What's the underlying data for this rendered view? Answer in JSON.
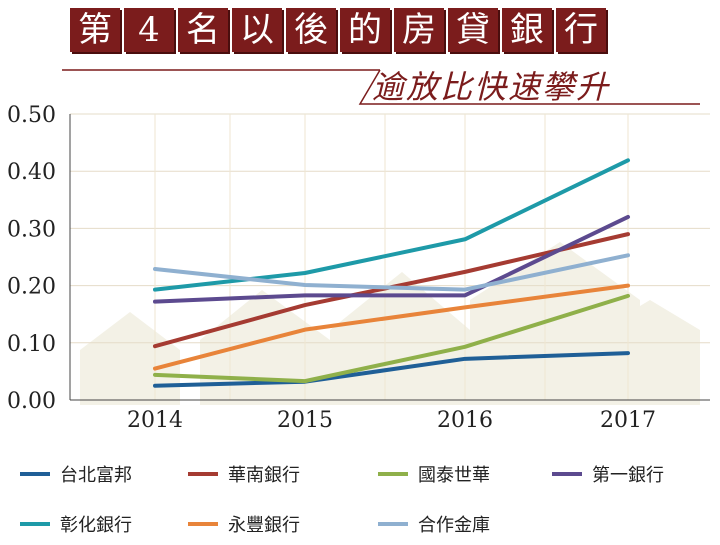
{
  "header": {
    "title_chars": [
      "第",
      "4",
      "名",
      "以",
      "後",
      "的",
      "房",
      "貸",
      "銀",
      "行"
    ],
    "subtitle": "逾放比快速攀升"
  },
  "chart_data": {
    "type": "line",
    "title": "第4名以後的房貸銀行",
    "subtitle": "逾放比快速攀升",
    "categories": [
      "2014",
      "2015",
      "2016",
      "2017"
    ],
    "ylim": [
      0,
      0.5
    ],
    "yticks": [
      "0.00",
      "0.10",
      "0.20",
      "0.30",
      "0.40",
      "0.50"
    ],
    "grid": true,
    "legend_position": "bottom",
    "series": [
      {
        "name": "台北富邦",
        "color": "#1f5f97",
        "values": [
          0.025,
          0.032,
          0.072,
          0.082
        ]
      },
      {
        "name": "華南銀行",
        "color": "#a53b32",
        "values": [
          0.094,
          0.166,
          0.224,
          0.29
        ]
      },
      {
        "name": "國泰世華",
        "color": "#8fb04a",
        "values": [
          0.044,
          0.033,
          0.093,
          0.182
        ]
      },
      {
        "name": "第一銀行",
        "color": "#5c4a8f",
        "values": [
          0.172,
          0.183,
          0.183,
          0.32
        ]
      },
      {
        "name": "彰化銀行",
        "color": "#1e9aa8",
        "values": [
          0.193,
          0.222,
          0.281,
          0.419
        ]
      },
      {
        "name": "永豐銀行",
        "color": "#e8843a",
        "values": [
          0.055,
          0.123,
          0.162,
          0.2
        ]
      },
      {
        "name": "合作金庫",
        "color": "#8fb0d0",
        "values": [
          0.229,
          0.201,
          0.193,
          0.253
        ]
      }
    ]
  }
}
